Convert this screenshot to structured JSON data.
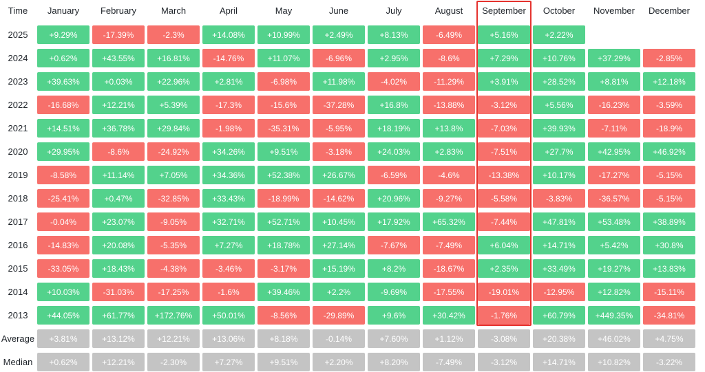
{
  "header": {
    "corner_label": "Time",
    "highlighted_column": "September"
  },
  "colors": {
    "positive": "#53d28c",
    "negative": "#f7706b",
    "neutral": "#c4c4c4",
    "highlight_border": "#e5322e",
    "cell_text": "#ffffff",
    "label_text": "#1e2329",
    "background": "#ffffff"
  },
  "chart_data": {
    "type": "heatmap",
    "title": "Monthly returns heatmap by year",
    "columns": [
      "January",
      "February",
      "March",
      "April",
      "May",
      "June",
      "July",
      "August",
      "September",
      "October",
      "November",
      "December"
    ],
    "highlighted_column": "September",
    "legend_position": "none",
    "color_rule": "positive values green, negative values red, summary rows gray",
    "color_overrides": [
      {
        "row": "2014",
        "column": "July",
        "color": "positive"
      }
    ],
    "rows": [
      {
        "label": "2025",
        "style": "signed",
        "values": [
          "+9.29%",
          "-17.39%",
          "-2.3%",
          "+14.08%",
          "+10.99%",
          "+2.49%",
          "+8.13%",
          "-6.49%",
          "+5.16%",
          "+2.22%",
          null,
          null
        ]
      },
      {
        "label": "2024",
        "style": "signed",
        "values": [
          "+0.62%",
          "+43.55%",
          "+16.81%",
          "-14.76%",
          "+11.07%",
          "-6.96%",
          "+2.95%",
          "-8.6%",
          "+7.29%",
          "+10.76%",
          "+37.29%",
          "-2.85%"
        ]
      },
      {
        "label": "2023",
        "style": "signed",
        "values": [
          "+39.63%",
          "+0.03%",
          "+22.96%",
          "+2.81%",
          "-6.98%",
          "+11.98%",
          "-4.02%",
          "-11.29%",
          "+3.91%",
          "+28.52%",
          "+8.81%",
          "+12.18%"
        ]
      },
      {
        "label": "2022",
        "style": "signed",
        "values": [
          "-16.68%",
          "+12.21%",
          "+5.39%",
          "-17.3%",
          "-15.6%",
          "-37.28%",
          "+16.8%",
          "-13.88%",
          "-3.12%",
          "+5.56%",
          "-16.23%",
          "-3.59%"
        ]
      },
      {
        "label": "2021",
        "style": "signed",
        "values": [
          "+14.51%",
          "+36.78%",
          "+29.84%",
          "-1.98%",
          "-35.31%",
          "-5.95%",
          "+18.19%",
          "+13.8%",
          "-7.03%",
          "+39.93%",
          "-7.11%",
          "-18.9%"
        ]
      },
      {
        "label": "2020",
        "style": "signed",
        "values": [
          "+29.95%",
          "-8.6%",
          "-24.92%",
          "+34.26%",
          "+9.51%",
          "-3.18%",
          "+24.03%",
          "+2.83%",
          "-7.51%",
          "+27.7%",
          "+42.95%",
          "+46.92%"
        ]
      },
      {
        "label": "2019",
        "style": "signed",
        "values": [
          "-8.58%",
          "+11.14%",
          "+7.05%",
          "+34.36%",
          "+52.38%",
          "+26.67%",
          "-6.59%",
          "-4.6%",
          "-13.38%",
          "+10.17%",
          "-17.27%",
          "-5.15%"
        ]
      },
      {
        "label": "2018",
        "style": "signed",
        "values": [
          "-25.41%",
          "+0.47%",
          "-32.85%",
          "+33.43%",
          "-18.99%",
          "-14.62%",
          "+20.96%",
          "-9.27%",
          "-5.58%",
          "-3.83%",
          "-36.57%",
          "-5.15%"
        ]
      },
      {
        "label": "2017",
        "style": "signed",
        "values": [
          "-0.04%",
          "+23.07%",
          "-9.05%",
          "+32.71%",
          "+52.71%",
          "+10.45%",
          "+17.92%",
          "+65.32%",
          "-7.44%",
          "+47.81%",
          "+53.48%",
          "+38.89%"
        ]
      },
      {
        "label": "2016",
        "style": "signed",
        "values": [
          "-14.83%",
          "+20.08%",
          "-5.35%",
          "+7.27%",
          "+18.78%",
          "+27.14%",
          "-7.67%",
          "-7.49%",
          "+6.04%",
          "+14.71%",
          "+5.42%",
          "+30.8%"
        ]
      },
      {
        "label": "2015",
        "style": "signed",
        "values": [
          "-33.05%",
          "+18.43%",
          "-4.38%",
          "-3.46%",
          "-3.17%",
          "+15.19%",
          "+8.2%",
          "-18.67%",
          "+2.35%",
          "+33.49%",
          "+19.27%",
          "+13.83%"
        ]
      },
      {
        "label": "2014",
        "style": "signed",
        "values": [
          "+10.03%",
          "-31.03%",
          "-17.25%",
          "-1.6%",
          "+39.46%",
          "+2.2%",
          "-9.69%",
          "-17.55%",
          "-19.01%",
          "-12.95%",
          "+12.82%",
          "-15.11%"
        ]
      },
      {
        "label": "2013",
        "style": "signed",
        "values": [
          "+44.05%",
          "+61.77%",
          "+172.76%",
          "+50.01%",
          "-8.56%",
          "-29.89%",
          "+9.6%",
          "+30.42%",
          "-1.76%",
          "+60.79%",
          "+449.35%",
          "-34.81%"
        ]
      },
      {
        "label": "Average",
        "style": "neutral",
        "values": [
          "+3.81%",
          "+13.12%",
          "+12.21%",
          "+13.06%",
          "+8.18%",
          "-0.14%",
          "+7.60%",
          "+1.12%",
          "-3.08%",
          "+20.38%",
          "+46.02%",
          "+4.75%"
        ]
      },
      {
        "label": "Median",
        "style": "neutral",
        "values": [
          "+0.62%",
          "+12.21%",
          "-2.30%",
          "+7.27%",
          "+9.51%",
          "+2.20%",
          "+8.20%",
          "-7.49%",
          "-3.12%",
          "+14.71%",
          "+10.82%",
          "-3.22%"
        ]
      }
    ]
  }
}
